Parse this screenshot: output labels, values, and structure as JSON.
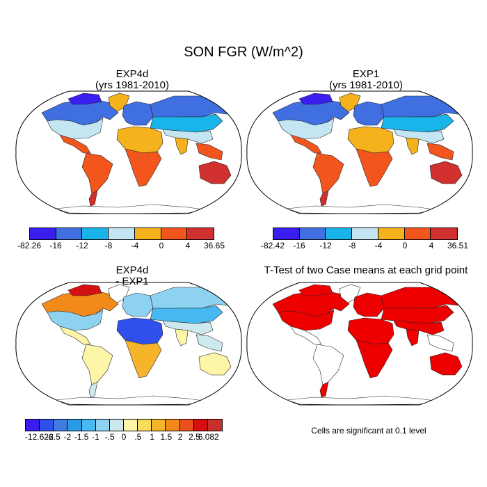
{
  "figure": {
    "title": "SON FGR (W/m^2)",
    "note": "Cells are significant at 0.1 level"
  },
  "panels": {
    "exp4d": {
      "title_line1": "EXP4d",
      "title_line2": "(yrs 1981-2010)"
    },
    "exp1": {
      "title_line1": "EXP1",
      "title_line2": "(yrs 1981-2010)"
    },
    "diff": {
      "title_line1": "EXP4d",
      "title_line2": "- EXP1"
    },
    "ttest": {
      "title_line1": "T-Test of two Case means at each grid point"
    }
  },
  "colorbars": {
    "exp4d": {
      "colors": [
        "#3a1ef0",
        "#3f6fe0",
        "#19b4ea",
        "#c4e6f2",
        "#f5b21c",
        "#f2561c",
        "#d0302e"
      ],
      "labels": [
        "-82.26",
        "-16",
        "-12",
        "-8",
        "-4",
        "0",
        "4",
        "36.65"
      ]
    },
    "exp1": {
      "colors": [
        "#3a1ef0",
        "#3f6fe0",
        "#19b4ea",
        "#c4e6f2",
        "#f5b21c",
        "#f2561c",
        "#d0302e"
      ],
      "labels": [
        "-82.42",
        "-16",
        "-12",
        "-8",
        "-4",
        "0",
        "4",
        "36.51"
      ]
    },
    "diff": {
      "colors": [
        "#3a1ef0",
        "#3050ee",
        "#3f7be0",
        "#2a9be6",
        "#48b9f0",
        "#8ed2f2",
        "#cde9ef",
        "#fdf6a8",
        "#f8dc5c",
        "#f6b42b",
        "#f28a1a",
        "#e8501c",
        "#d41010",
        "#c8302c"
      ],
      "labels": [
        "-12.626",
        "-2.5",
        "-2",
        "-1.5",
        "-1",
        "-.5",
        "0",
        ".5",
        "1",
        "1.5",
        "2",
        "2.5",
        "6.082"
      ]
    }
  },
  "map_fills": {
    "exp4d": {
      "north_america": "#3f6fe0",
      "arctic_islands": "#3a1ef0",
      "greenland": "#f5b21c",
      "us": "#c4e6f2",
      "central_america": "#f2561c",
      "south_america": "#f2561c",
      "south_america_tip": "#d0302e",
      "europe": "#3f6fe0",
      "asia_north": "#3f6fe0",
      "asia_central": "#19b4ea",
      "asia_south": "#c4e6f2",
      "africa_north": "#f5b21c",
      "africa_south": "#f2561c",
      "india": "#f5b21c",
      "se_asia": "#f2561c",
      "australia": "#d0302e"
    },
    "exp1": {
      "north_america": "#3f6fe0",
      "arctic_islands": "#3a1ef0",
      "greenland": "#f5b21c",
      "us": "#c4e6f2",
      "central_america": "#f2561c",
      "south_america": "#f2561c",
      "south_america_tip": "#d0302e",
      "europe": "#3f6fe0",
      "asia_north": "#3f6fe0",
      "asia_central": "#19b4ea",
      "asia_south": "#c4e6f2",
      "africa_north": "#f5b21c",
      "africa_south": "#f2561c",
      "india": "#f5b21c",
      "se_asia": "#f2561c",
      "australia": "#d0302e"
    },
    "diff": {
      "north_america": "#f28a1a",
      "arctic_islands": "#d41010",
      "greenland": "#ffffff",
      "us": "#8ed2f2",
      "central_america": "#fdf6a8",
      "south_america": "#fdf6a8",
      "south_america_tip": "#cde9ef",
      "europe": "#8ed2f2",
      "asia_north": "#8ed2f2",
      "asia_central": "#48b9f0",
      "asia_south": "#cde9ef",
      "africa_north": "#3050ee",
      "africa_south": "#f6b42b",
      "india": "#fdf6a8",
      "se_asia": "#cde9ef",
      "australia": "#fdf6a8"
    },
    "ttest": {
      "north_america": "#ee0000",
      "arctic_islands": "#ee0000",
      "greenland": "#ffffff",
      "us": "#ee0000",
      "central_america": "#ffffff",
      "south_america": "#ffffff",
      "south_america_tip": "#ee0000",
      "europe": "#ee0000",
      "asia_north": "#ee0000",
      "asia_central": "#ee0000",
      "asia_south": "#ee0000",
      "africa_north": "#ee0000",
      "africa_south": "#ee0000",
      "india": "#ee0000",
      "se_asia": "#ffffff",
      "australia": "#ee0000"
    }
  }
}
